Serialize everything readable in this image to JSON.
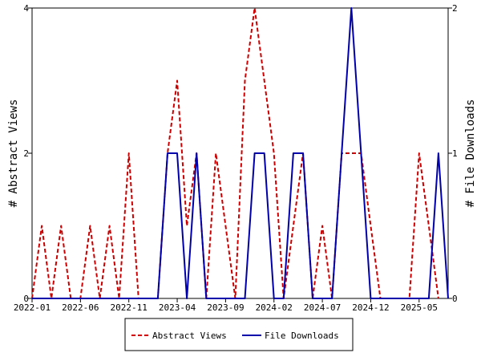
{
  "chart_data": {
    "type": "line",
    "xlabel": "",
    "ylabel": "# Abstract Views",
    "y2label": "# File Downloads",
    "ylim": [
      0,
      4
    ],
    "y2lim": [
      0,
      2
    ],
    "yticks": [
      "0",
      "2",
      "4"
    ],
    "y2ticks": [
      "0",
      "1",
      "2"
    ],
    "x_month_range": [
      "2022-01",
      "2025-08"
    ],
    "xticks": [
      "2022-01",
      "2022-06",
      "2022-11",
      "2023-04",
      "2023-09",
      "2024-02",
      "2024-07",
      "2024-12",
      "2025-05"
    ],
    "grid": false,
    "legend_position": "bottom",
    "series": [
      {
        "name": "Abstract Views",
        "axis": "left",
        "color": "#cc0000",
        "dash": "dashed",
        "points": [
          [
            "2022-01",
            0
          ],
          [
            "2022-02",
            1
          ],
          [
            "2022-03",
            0
          ],
          [
            "2022-04",
            1
          ],
          [
            "2022-05",
            0
          ],
          [
            "2022-06",
            0
          ],
          [
            "2022-07",
            1
          ],
          [
            "2022-08",
            0
          ],
          [
            "2022-09",
            1
          ],
          [
            "2022-10",
            0
          ],
          [
            "2022-11",
            2
          ],
          [
            "2022-12",
            0
          ],
          [
            "2023-01",
            0
          ],
          [
            "2023-02",
            0
          ],
          [
            "2023-03",
            2
          ],
          [
            "2023-04",
            3
          ],
          [
            "2023-05",
            1
          ],
          [
            "2023-06",
            2
          ],
          [
            "2023-07",
            0
          ],
          [
            "2023-08",
            2
          ],
          [
            "2023-09",
            1
          ],
          [
            "2023-10",
            0
          ],
          [
            "2023-11",
            3
          ],
          [
            "2023-12",
            4
          ],
          [
            "2024-01",
            3
          ],
          [
            "2024-02",
            2
          ],
          [
            "2024-03",
            0
          ],
          [
            "2024-04",
            1
          ],
          [
            "2024-05",
            2
          ],
          [
            "2024-06",
            0
          ],
          [
            "2024-07",
            1
          ],
          [
            "2024-08",
            0
          ],
          [
            "2024-09",
            2
          ],
          [
            "2024-10",
            2
          ],
          [
            "2024-11",
            2
          ],
          [
            "2024-12",
            1
          ],
          [
            "2025-01",
            0
          ],
          [
            "2025-02",
            0
          ],
          [
            "2025-03",
            0
          ],
          [
            "2025-04",
            0
          ],
          [
            "2025-05",
            2
          ],
          [
            "2025-06",
            1
          ],
          [
            "2025-07",
            0
          ]
        ]
      },
      {
        "name": "File Downloads",
        "axis": "right",
        "color": "#0000aa",
        "dash": "solid",
        "points": [
          [
            "2022-01",
            0
          ],
          [
            "2022-02",
            0
          ],
          [
            "2022-03",
            0
          ],
          [
            "2022-04",
            0
          ],
          [
            "2022-05",
            0
          ],
          [
            "2022-06",
            0
          ],
          [
            "2022-07",
            0
          ],
          [
            "2022-08",
            0
          ],
          [
            "2022-09",
            0
          ],
          [
            "2022-10",
            0
          ],
          [
            "2022-11",
            0
          ],
          [
            "2022-12",
            0
          ],
          [
            "2023-01",
            0
          ],
          [
            "2023-02",
            0
          ],
          [
            "2023-03",
            1
          ],
          [
            "2023-04",
            1
          ],
          [
            "2023-05",
            0
          ],
          [
            "2023-06",
            1
          ],
          [
            "2023-07",
            0
          ],
          [
            "2023-08",
            0
          ],
          [
            "2023-09",
            0
          ],
          [
            "2023-10",
            0
          ],
          [
            "2023-11",
            0
          ],
          [
            "2023-12",
            1
          ],
          [
            "2024-01",
            1
          ],
          [
            "2024-02",
            0
          ],
          [
            "2024-03",
            0
          ],
          [
            "2024-04",
            1
          ],
          [
            "2024-05",
            1
          ],
          [
            "2024-06",
            0
          ],
          [
            "2024-07",
            0
          ],
          [
            "2024-08",
            0
          ],
          [
            "2024-09",
            1
          ],
          [
            "2024-10",
            2
          ],
          [
            "2024-11",
            1
          ],
          [
            "2024-12",
            0
          ],
          [
            "2025-01",
            0
          ],
          [
            "2025-02",
            0
          ],
          [
            "2025-03",
            0
          ],
          [
            "2025-04",
            0
          ],
          [
            "2025-05",
            0
          ],
          [
            "2025-06",
            0
          ],
          [
            "2025-07",
            1
          ],
          [
            "2025-08",
            0
          ]
        ]
      }
    ]
  }
}
